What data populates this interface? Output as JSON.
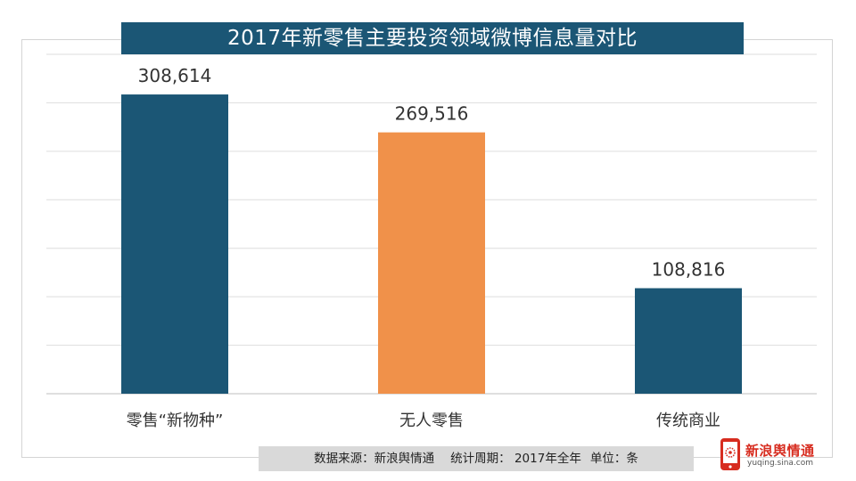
{
  "chart_data": {
    "type": "bar",
    "title": "2017年新零售主要投资领域微博信息量对比",
    "categories": [
      "零售“新物种”",
      "无人零售",
      "传统商业"
    ],
    "values": [
      308614,
      269516,
      108816
    ],
    "value_labels": [
      "308,614",
      "269,516",
      "108,816"
    ],
    "bar_colors": [
      "#1b5675",
      "#f0914a",
      "#1b5675"
    ],
    "ylim": [
      0,
      350000
    ],
    "grid": true,
    "xlabel": "",
    "ylabel": ""
  },
  "footer": {
    "source": "数据来源：新浪舆情通",
    "period": "统计周期： 2017年全年",
    "unit": "单位：条"
  },
  "logo": {
    "name": "新浪舆情通",
    "url": "yuqing.sina.com",
    "icon": "phone-logo-icon"
  },
  "colors": {
    "title_bg": "#1b5675",
    "accent_orange": "#f0914a",
    "footer_bg": "#d9d9d9",
    "logo_red": "#d72c1f"
  }
}
